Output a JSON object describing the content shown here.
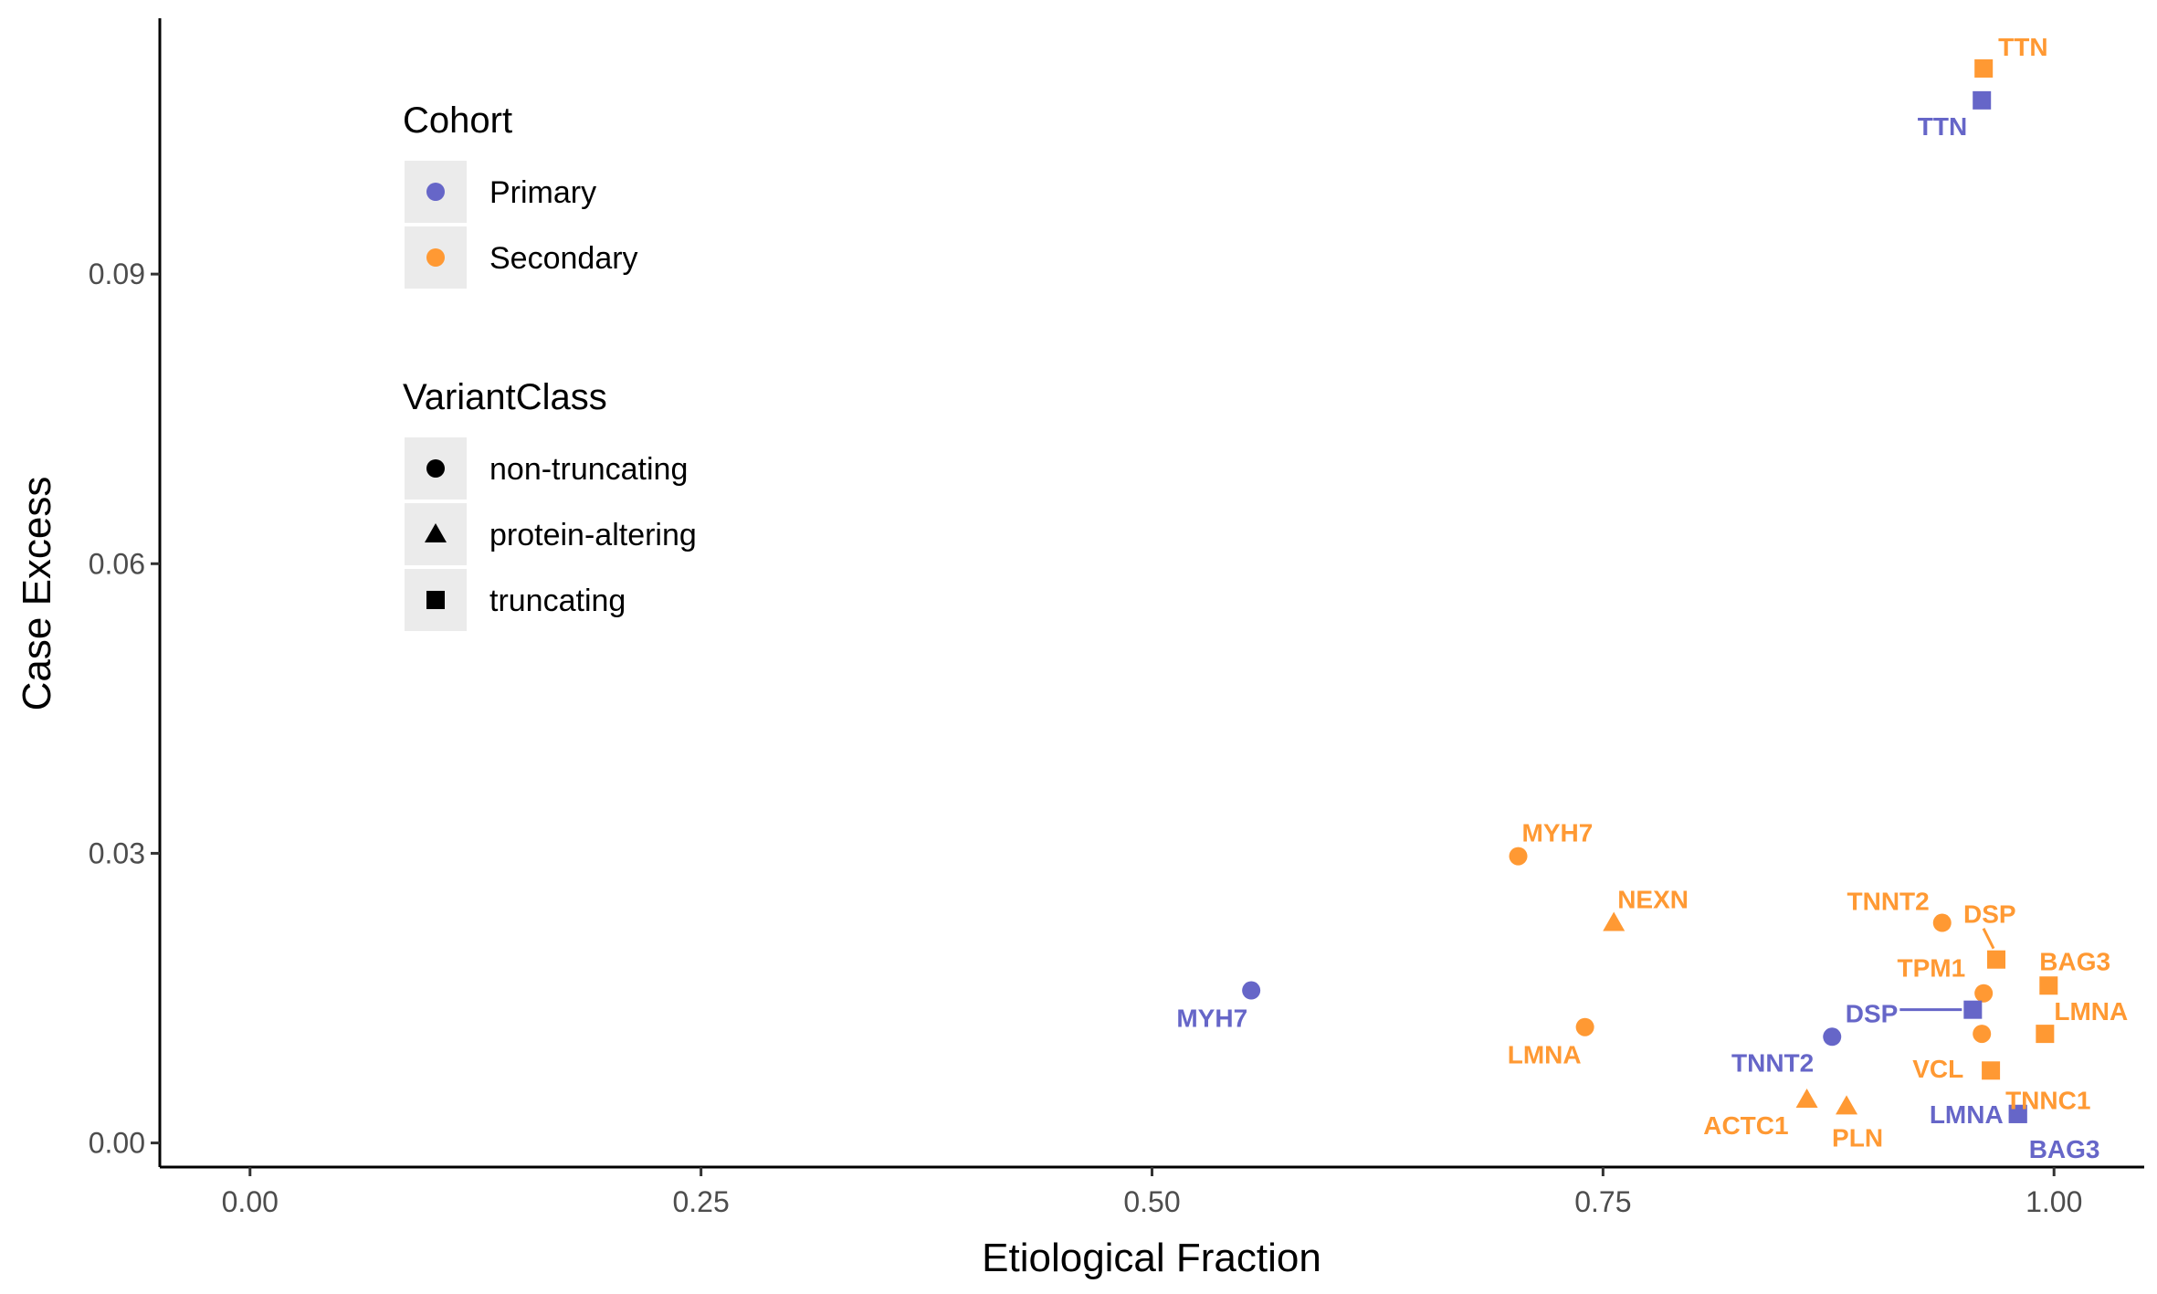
{
  "chart_data": {
    "type": "scatter",
    "xlabel": "Etiological Fraction",
    "ylabel": "Case Excess",
    "xlim": [
      -0.05,
      1.05
    ],
    "ylim": [
      -0.0025,
      0.1165
    ],
    "x_ticks": [
      {
        "value": 0.0,
        "label": "0.00"
      },
      {
        "value": 0.25,
        "label": "0.25"
      },
      {
        "value": 0.5,
        "label": "0.50"
      },
      {
        "value": 0.75,
        "label": "0.75"
      },
      {
        "value": 1.0,
        "label": "1.00"
      }
    ],
    "y_ticks": [
      {
        "value": 0.0,
        "label": "0.00"
      },
      {
        "value": 0.03,
        "label": "0.03"
      },
      {
        "value": 0.06,
        "label": "0.06"
      },
      {
        "value": 0.09,
        "label": "0.09"
      }
    ],
    "grid": false,
    "legend_position": "top-left",
    "colors": {
      "Primary": "#6666c8",
      "Secondary": "#ff9933"
    },
    "legend": {
      "cohort": {
        "title": "Cohort",
        "items": [
          "Primary",
          "Secondary"
        ]
      },
      "variant_class": {
        "title": "VariantClass",
        "items": [
          "non-truncating",
          "protein-altering",
          "truncating"
        ]
      }
    },
    "points": [
      {
        "gene": "TTN",
        "cohort": "Secondary",
        "variant_class": "truncating",
        "x": 0.961,
        "y": 0.1113
      },
      {
        "gene": "TTN",
        "cohort": "Primary",
        "variant_class": "truncating",
        "x": 0.96,
        "y": 0.108
      },
      {
        "gene": "MYH7",
        "cohort": "Secondary",
        "variant_class": "non-truncating",
        "x": 0.703,
        "y": 0.0297
      },
      {
        "gene": "NEXN",
        "cohort": "Secondary",
        "variant_class": "protein-altering",
        "x": 0.756,
        "y": 0.0228
      },
      {
        "gene": "MYH7",
        "cohort": "Primary",
        "variant_class": "non-truncating",
        "x": 0.555,
        "y": 0.0158
      },
      {
        "gene": "LMNA",
        "cohort": "Secondary",
        "variant_class": "non-truncating",
        "x": 0.74,
        "y": 0.012
      },
      {
        "gene": "TNNT2",
        "cohort": "Secondary",
        "variant_class": "non-truncating",
        "x": 0.938,
        "y": 0.0228
      },
      {
        "gene": "DSP",
        "cohort": "Secondary",
        "variant_class": "truncating",
        "x": 0.968,
        "y": 0.019
      },
      {
        "gene": "TPM1",
        "cohort": "Secondary",
        "variant_class": "non-truncating",
        "x": 0.961,
        "y": 0.0155
      },
      {
        "gene": "BAG3",
        "cohort": "Secondary",
        "variant_class": "truncating",
        "x": 0.997,
        "y": 0.0163
      },
      {
        "gene": "LMNA",
        "cohort": "Secondary",
        "variant_class": "truncating",
        "x": 0.995,
        "y": 0.0113
      },
      {
        "gene": "DSP",
        "cohort": "Primary",
        "variant_class": "truncating",
        "x": 0.955,
        "y": 0.0138
      },
      {
        "gene": "TNNT2",
        "cohort": "Primary",
        "variant_class": "non-truncating",
        "x": 0.877,
        "y": 0.011
      },
      {
        "gene": "VCL",
        "cohort": "Secondary",
        "variant_class": "non-truncating",
        "x": 0.96,
        "y": 0.0113
      },
      {
        "gene": "TNNC1",
        "cohort": "Secondary",
        "variant_class": "truncating",
        "x": 0.965,
        "y": 0.0075
      },
      {
        "gene": "ACTC1",
        "cohort": "Secondary",
        "variant_class": "protein-altering",
        "x": 0.863,
        "y": 0.0045
      },
      {
        "gene": "PLN",
        "cohort": "Secondary",
        "variant_class": "protein-altering",
        "x": 0.885,
        "y": 0.0038
      },
      {
        "gene": "LMNA",
        "cohort": "Primary",
        "variant_class": "truncating",
        "x": 0.98,
        "y": 0.003
      },
      {
        "gene": "BAG3",
        "cohort": "Primary",
        "variant_class": "truncating",
        "x": 0.98,
        "y": 0.003
      }
    ]
  }
}
